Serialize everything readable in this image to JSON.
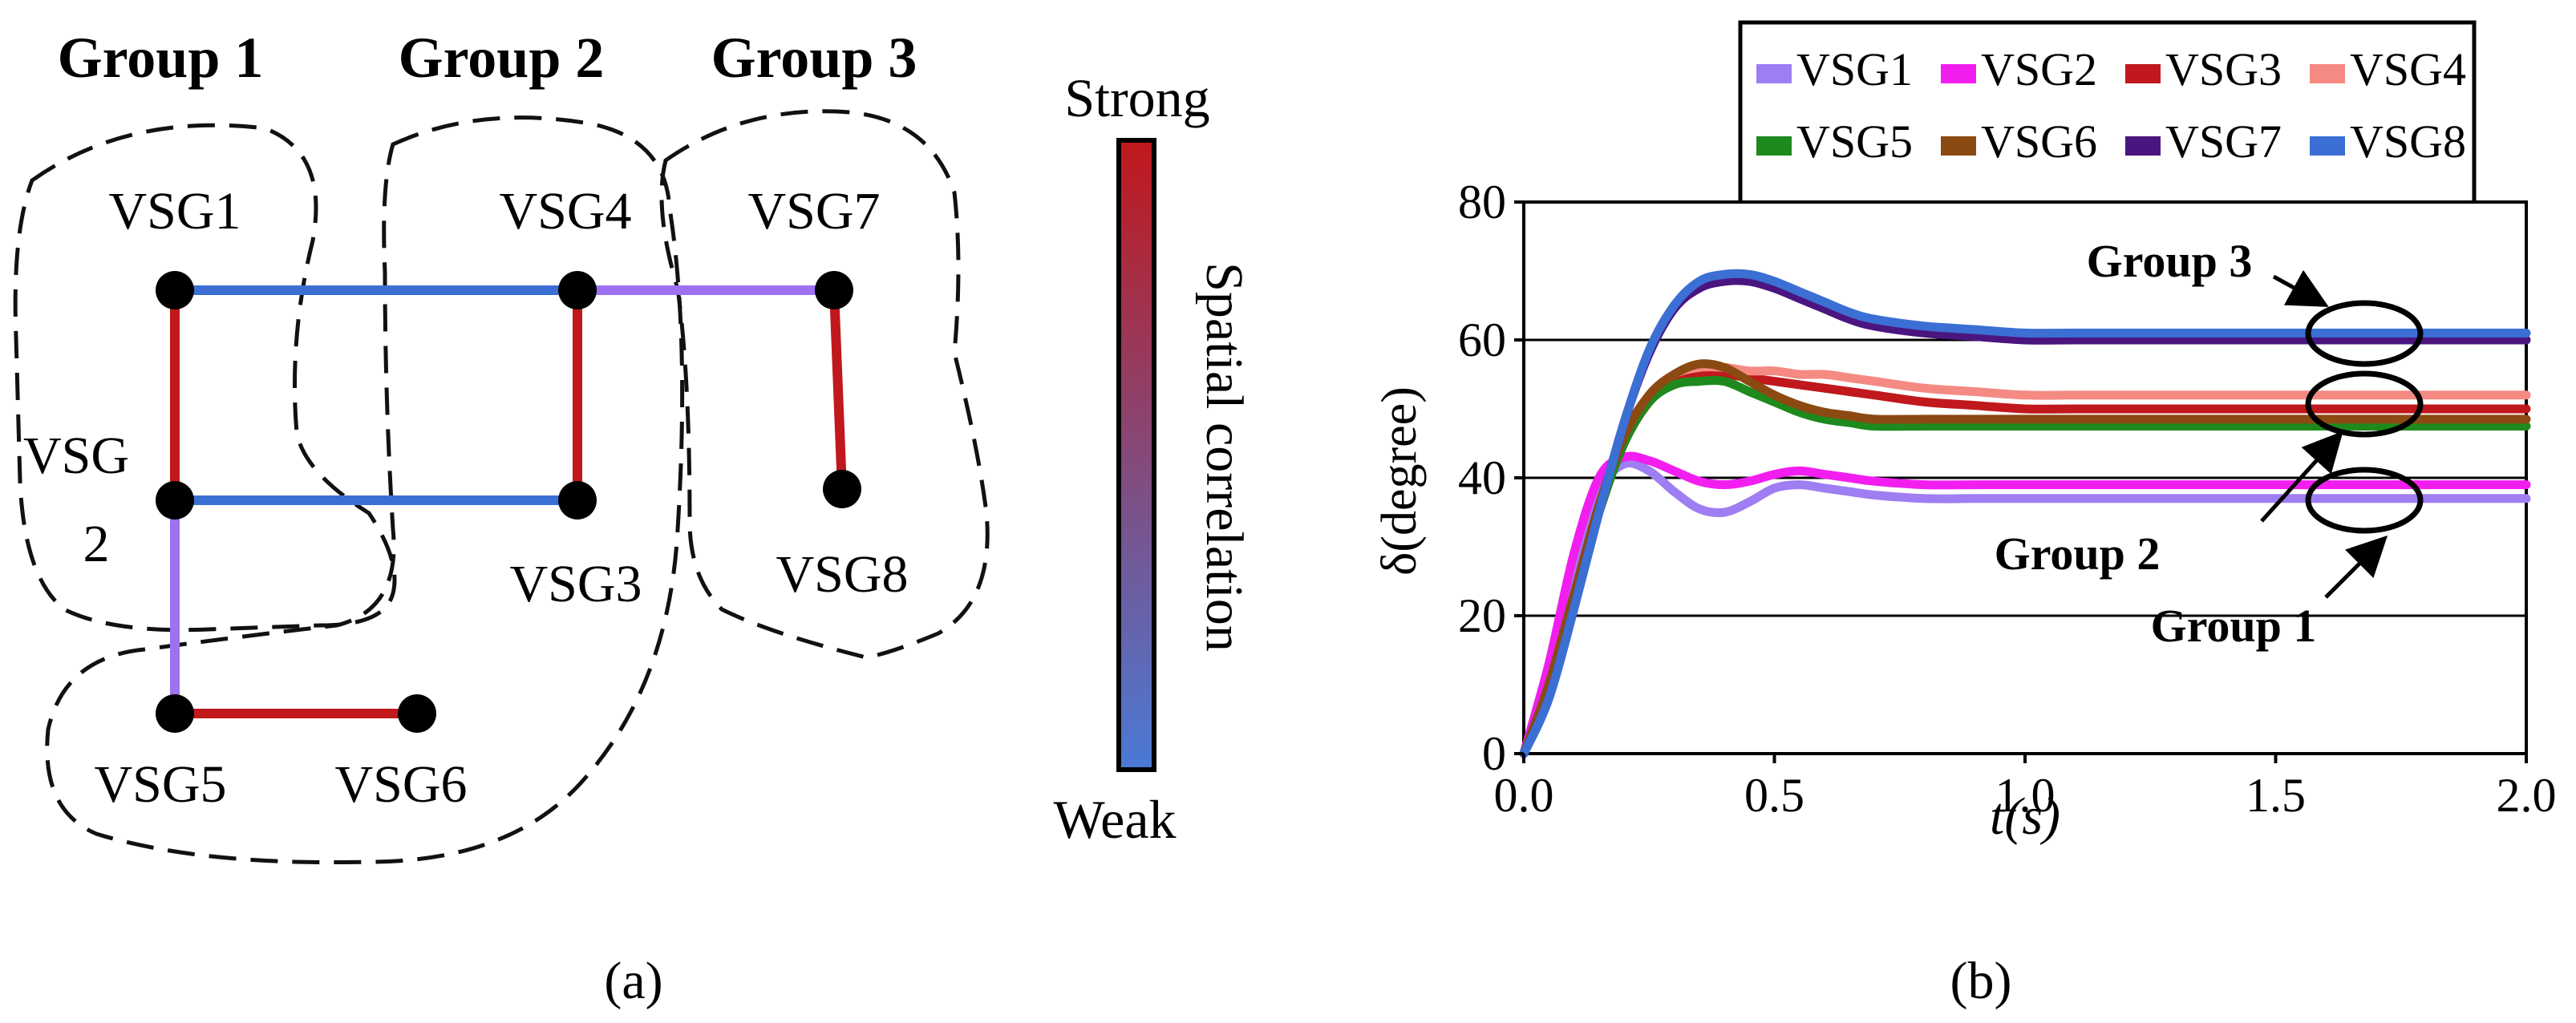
{
  "panel_a": {
    "label": "(a)",
    "groups": [
      {
        "name": "Group 1"
      },
      {
        "name": "Group 2"
      },
      {
        "name": "Group 3"
      }
    ],
    "nodes": [
      "VSG1",
      "VSG4",
      "VSG7",
      "VSG3",
      "VSG8",
      "VSG5",
      "VSG6"
    ],
    "vsg2_label": [
      "VSG",
      "2"
    ],
    "edges": [
      {
        "from": "VSG1",
        "to": "VSG4",
        "strength": "weak",
        "color": "#3b6fd4"
      },
      {
        "from": "VSG4",
        "to": "VSG7",
        "strength": "medium-weak",
        "color": "#9d71f0"
      },
      {
        "from": "VSG1",
        "to": "VSG2",
        "strength": "strong",
        "color": "#c0181c"
      },
      {
        "from": "VSG4",
        "to": "VSG3",
        "strength": "strong",
        "color": "#c0181c"
      },
      {
        "from": "VSG7",
        "to": "VSG8",
        "strength": "strong",
        "color": "#c0181c"
      },
      {
        "from": "VSG2",
        "to": "VSG3",
        "strength": "weak",
        "color": "#3b6fd4"
      },
      {
        "from": "VSG2",
        "to": "VSG5",
        "strength": "medium-weak",
        "color": "#9d71f0"
      },
      {
        "from": "VSG5",
        "to": "VSG6",
        "strength": "strong",
        "color": "#c0181c"
      }
    ],
    "colorbar": {
      "top_label": "Strong",
      "bottom_label": "Weak",
      "axis_label": "Spatial correlation",
      "top_color": "#c0181c",
      "bottom_color": "#4a7ad6"
    }
  },
  "panel_b": {
    "label": "(b)",
    "annotations": [
      "Group 3",
      "Group 2",
      "Group 1"
    ]
  },
  "chart_data": {
    "type": "line",
    "title": "",
    "xlabel": "t(s)",
    "ylabel": "δ(degree)",
    "xlim": [
      0,
      2.0
    ],
    "ylim": [
      0,
      80
    ],
    "xticks": [
      "0.0",
      "0.5",
      "1.0",
      "1.5",
      "2.0"
    ],
    "yticks": [
      "0",
      "20",
      "40",
      "60",
      "80"
    ],
    "x": [
      0,
      0.05,
      0.1,
      0.15,
      0.2,
      0.25,
      0.3,
      0.35,
      0.4,
      0.45,
      0.5,
      0.55,
      0.6,
      0.65,
      0.7,
      0.8,
      0.9,
      1.0,
      1.1,
      1.2,
      1.4,
      1.6,
      1.8,
      2.0
    ],
    "series": [
      {
        "name": "VSG1",
        "color": "#9e7ef2",
        "values": [
          0,
          12,
          27,
          38,
          42,
          41,
          38,
          35.5,
          35,
          36.5,
          38.5,
          39,
          38.5,
          38,
          37.5,
          37,
          37,
          37,
          37,
          37,
          37,
          37,
          37,
          37
        ]
      },
      {
        "name": "VSG2",
        "color": "#f21ef0",
        "values": [
          0,
          13,
          29,
          40,
          43,
          42.5,
          41,
          39.5,
          39,
          39.5,
          40.5,
          41,
          40.5,
          40,
          39.5,
          39,
          39,
          39,
          39,
          39,
          39,
          39,
          39,
          39
        ]
      },
      {
        "name": "VSG3",
        "color": "#c0181c",
        "values": [
          0,
          9,
          22,
          35,
          45,
          51,
          54,
          55,
          55,
          54.5,
          54,
          53.5,
          53,
          52.5,
          52,
          51,
          50.5,
          50,
          50,
          50,
          50,
          50,
          50,
          50
        ]
      },
      {
        "name": "VSG4",
        "color": "#f48a82",
        "values": [
          0,
          9,
          22,
          35,
          46,
          52,
          55,
          56,
          56,
          55.5,
          55.5,
          55,
          55,
          54.5,
          54,
          53,
          52.5,
          52,
          52,
          52,
          52,
          52,
          52,
          52
        ]
      },
      {
        "name": "VSG5",
        "color": "#1e8a1e",
        "values": [
          0,
          10,
          23,
          35,
          45,
          51,
          53.5,
          54,
          54,
          52.5,
          51,
          49.5,
          48.5,
          48,
          47.5,
          47.5,
          47.5,
          47.5,
          47.5,
          47.5,
          47.5,
          47.5,
          47.5,
          47.5
        ]
      },
      {
        "name": "VSG6",
        "color": "#8b4a12",
        "values": [
          0,
          10,
          23,
          36,
          46,
          52,
          55,
          56.5,
          56,
          54,
          52,
          50.5,
          49.5,
          49,
          48.5,
          48.5,
          48.5,
          48.5,
          48.5,
          48.5,
          48.5,
          48.5,
          48.5,
          48.5
        ]
      },
      {
        "name": "VSG7",
        "color": "#4b1580",
        "values": [
          0,
          8,
          21,
          35,
          48,
          58,
          64.5,
          67.5,
          68.5,
          68.5,
          67.5,
          66,
          64.5,
          63,
          62,
          61,
          60.5,
          60,
          60,
          60,
          60,
          60,
          60,
          60
        ]
      },
      {
        "name": "VSG8",
        "color": "#3b6fd4",
        "values": [
          0,
          8,
          21,
          35,
          48,
          58.5,
          65,
          68.5,
          69.5,
          69.5,
          68.5,
          67,
          65.5,
          64,
          63,
          62,
          61.5,
          61,
          61,
          61,
          61,
          61,
          61,
          61
        ]
      }
    ],
    "legend_position": "top"
  }
}
